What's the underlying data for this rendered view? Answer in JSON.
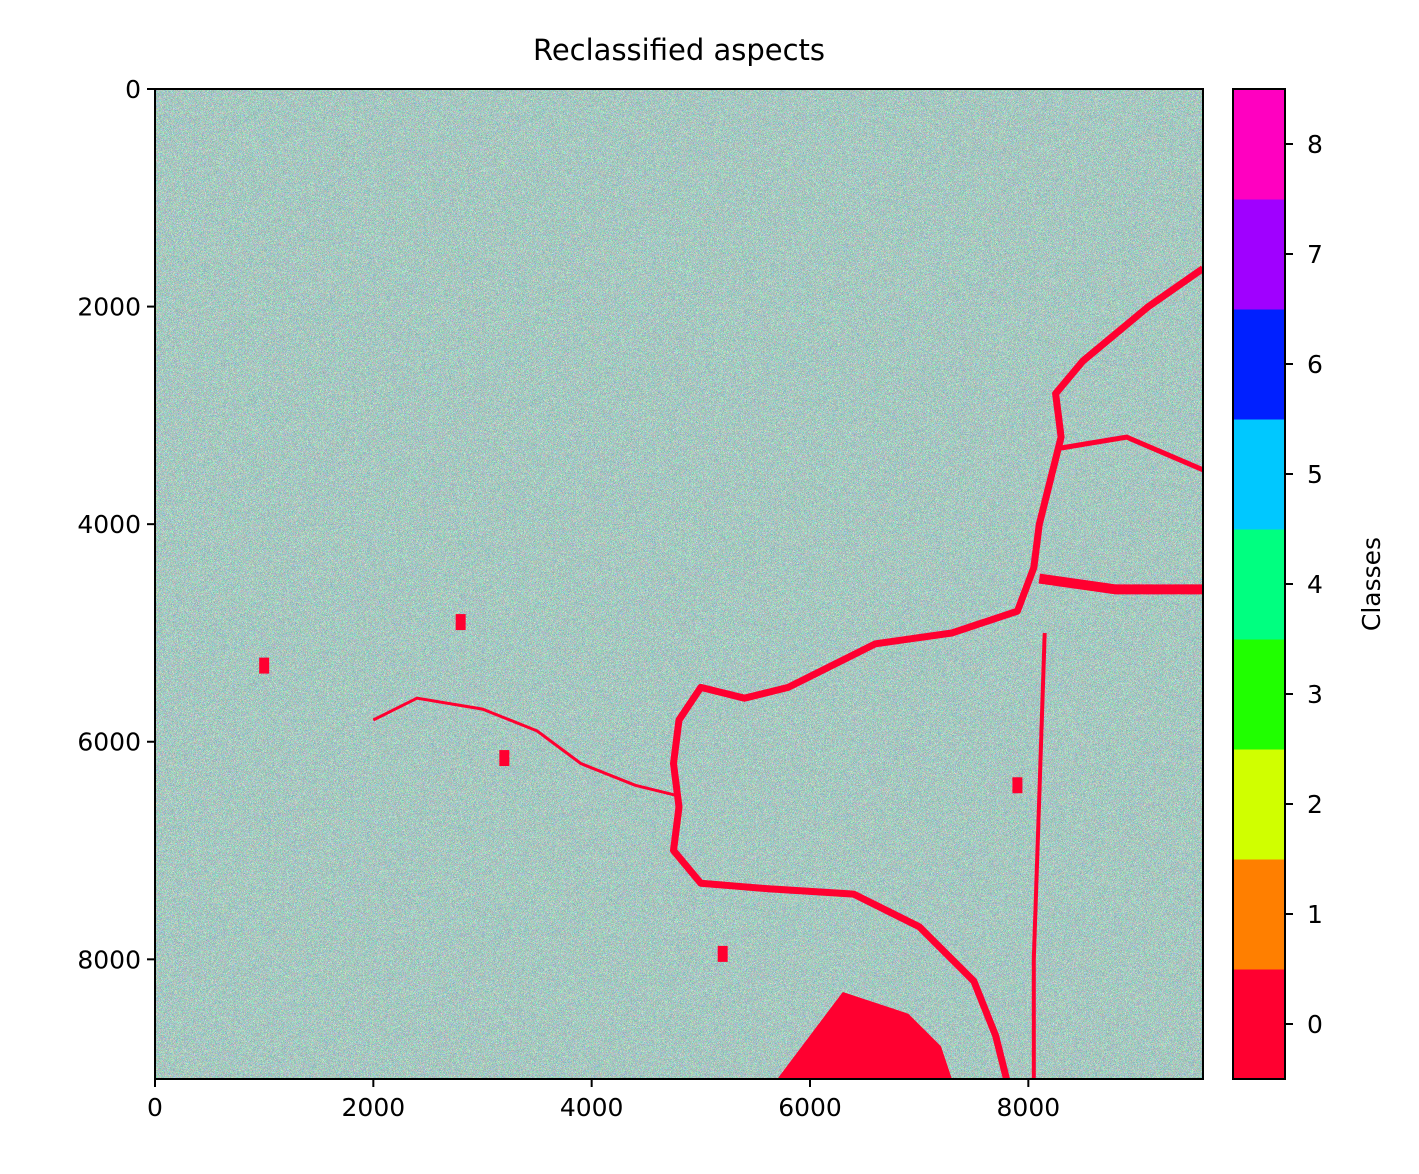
{
  "chart_data": {
    "type": "heatmap",
    "title": "Reclassified aspects",
    "xlabel": "",
    "ylabel": "",
    "xlim": [
      0,
      9600
    ],
    "ylim": [
      9100,
      0
    ],
    "x_ticks": [
      0,
      2000,
      4000,
      6000,
      8000
    ],
    "y_ticks": [
      0,
      2000,
      4000,
      6000,
      8000
    ],
    "x_tick_labels": [
      "0",
      "2000",
      "4000",
      "6000",
      "8000"
    ],
    "y_tick_labels": [
      "0",
      "2000",
      "4000",
      "6000",
      "8000"
    ],
    "colorbar": {
      "label": "Classes",
      "classes": [
        0,
        1,
        2,
        3,
        4,
        5,
        6,
        7,
        8
      ],
      "tick_labels": [
        "0",
        "1",
        "2",
        "3",
        "4",
        "5",
        "6",
        "7",
        "8"
      ],
      "colors": [
        "#ff0030",
        "#ff7f00",
        "#d0ff00",
        "#20ff00",
        "#00ff80",
        "#00c8ff",
        "#0020ff",
        "#a000ff",
        "#ff00c0"
      ],
      "range": [
        -0.5,
        8.5
      ]
    },
    "description_features": {
      "noise_base_color": "#808080",
      "river_class": 0
    }
  }
}
